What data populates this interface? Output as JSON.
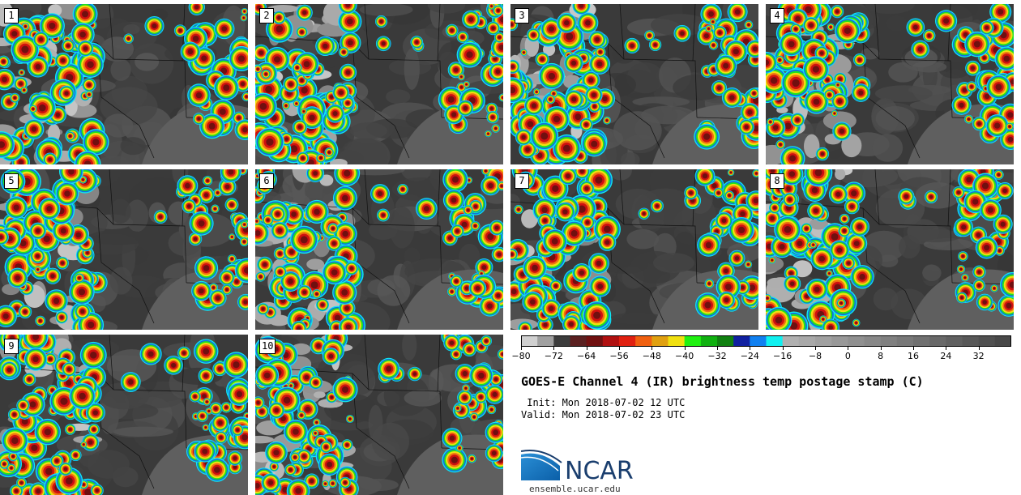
{
  "panels": [
    {
      "label": "1"
    },
    {
      "label": "2"
    },
    {
      "label": "3"
    },
    {
      "label": "4"
    },
    {
      "label": "5"
    },
    {
      "label": "6"
    },
    {
      "label": "7"
    },
    {
      "label": "8"
    },
    {
      "label": "9"
    },
    {
      "label": "10"
    }
  ],
  "colorbar": {
    "ticks": [
      "-80",
      "-72",
      "-64",
      "-56",
      "-48",
      "-40",
      "-32",
      "-24",
      "-16",
      "-8",
      "0",
      "8",
      "16",
      "24",
      "32"
    ],
    "tick_values": [
      -80,
      -72,
      -64,
      -56,
      -48,
      -40,
      -32,
      -24,
      -16,
      -8,
      0,
      8,
      16,
      24,
      32
    ],
    "range": [
      -80,
      40
    ],
    "step": 4,
    "colors": [
      "#d0d0d0",
      "#a0a0a0",
      "#3c3c3c",
      "#5a2020",
      "#701010",
      "#b01010",
      "#e02010",
      "#f06010",
      "#e0a010",
      "#f0e010",
      "#20f010",
      "#10b010",
      "#108010",
      "#1020a0",
      "#1080f0",
      "#10f0f0",
      "#b0b0b0",
      "#a8a8a8",
      "#a0a0a0",
      "#989898",
      "#909090",
      "#888888",
      "#808080",
      "#787878",
      "#707070",
      "#686868",
      "#606060",
      "#585858",
      "#505050",
      "#484848"
    ]
  },
  "title": "GOES-E Channel 4 (IR) brightness temp postage stamp (C)",
  "init": " Init: Mon 2018-07-02 12 UTC",
  "valid": "Valid: Mon 2018-07-02 23 UTC",
  "logo": {
    "text": "NCAR",
    "url": "ensemble.ucar.edu",
    "color": "#1a3e6e",
    "accent": "#0b79c2"
  }
}
